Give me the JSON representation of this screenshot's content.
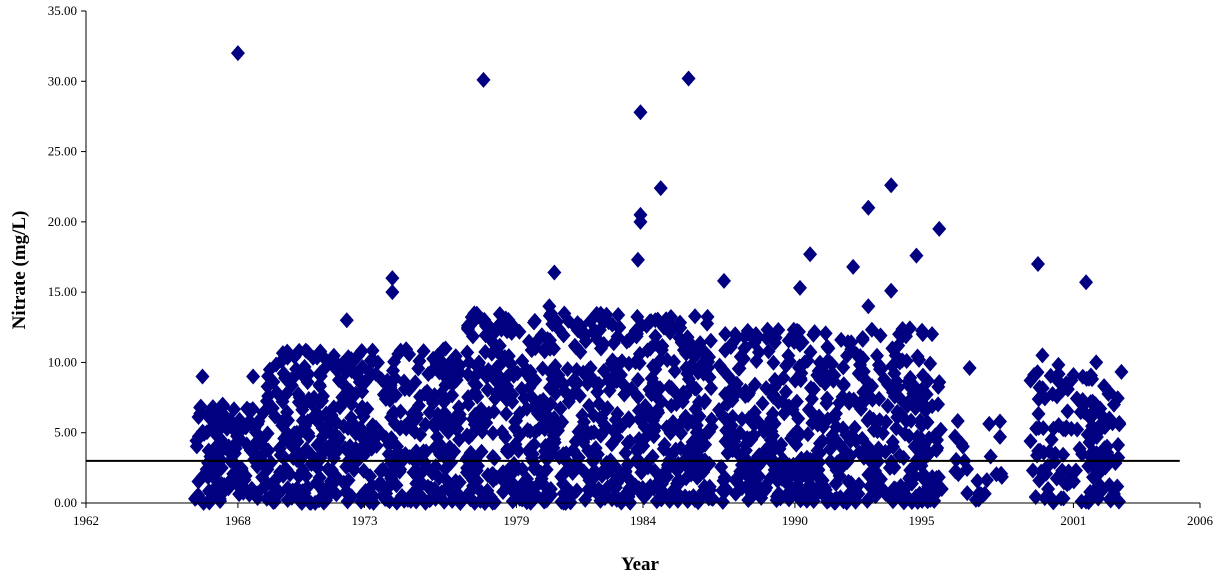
{
  "chart_data": {
    "type": "scatter",
    "title": "",
    "xlabel": "Year",
    "ylabel": "Nitrate (mg/L)",
    "xlim": [
      1962,
      2006
    ],
    "ylim": [
      0,
      35
    ],
    "x_ticks": [
      "1962",
      "1968",
      "1973",
      "1979",
      "1984",
      "1990",
      "1995",
      "2001",
      "2006"
    ],
    "y_ticks": [
      "0.00",
      "5.00",
      "10.00",
      "15.00",
      "20.00",
      "25.00",
      "30.00",
      "35.00"
    ],
    "grid": false,
    "legend": "none",
    "marker": "diamond",
    "marker_color": "#000080",
    "reference_line": {
      "y": 3.0,
      "x_range": [
        1962,
        2005.2
      ],
      "color": "#000000"
    },
    "highlighted_points": [
      {
        "x": 1968.0,
        "y": 32.0
      },
      {
        "x": 1977.7,
        "y": 30.1
      },
      {
        "x": 1985.8,
        "y": 30.2
      },
      {
        "x": 1983.9,
        "y": 27.8
      },
      {
        "x": 1984.7,
        "y": 22.4
      },
      {
        "x": 1993.8,
        "y": 22.6
      },
      {
        "x": 1992.9,
        "y": 21.0
      },
      {
        "x": 1983.9,
        "y": 20.5
      },
      {
        "x": 1983.9,
        "y": 20.0
      },
      {
        "x": 1995.7,
        "y": 19.5
      },
      {
        "x": 1990.6,
        "y": 17.7
      },
      {
        "x": 1994.8,
        "y": 17.6
      },
      {
        "x": 1983.8,
        "y": 17.3
      },
      {
        "x": 1999.6,
        "y": 17.0
      },
      {
        "x": 1992.3,
        "y": 16.8
      },
      {
        "x": 1980.5,
        "y": 16.4
      },
      {
        "x": 1974.1,
        "y": 16.0
      },
      {
        "x": 1987.2,
        "y": 15.8
      },
      {
        "x": 2001.5,
        "y": 15.7
      },
      {
        "x": 1990.2,
        "y": 15.3
      },
      {
        "x": 1993.8,
        "y": 15.1
      },
      {
        "x": 1974.1,
        "y": 15.0
      },
      {
        "x": 1992.9,
        "y": 14.0
      },
      {
        "x": 1980.3,
        "y": 14.0
      },
      {
        "x": 1972.3,
        "y": 13.0
      },
      {
        "x": 1966.6,
        "y": 9.0
      },
      {
        "x": 1968.6,
        "y": 9.0
      },
      {
        "x": 1967.4,
        "y": 7.0
      },
      {
        "x": 1996.9,
        "y": 9.6
      },
      {
        "x": 1998.1,
        "y": 5.8
      },
      {
        "x": 1998.1,
        "y": 4.7
      },
      {
        "x": 1996.7,
        "y": 3.0
      },
      {
        "x": 1995.8,
        "y": 1.0
      },
      {
        "x": 2000.0,
        "y": 1.0
      },
      {
        "x": 2001.5,
        "y": 0.1
      },
      {
        "x": 2002.8,
        "y": 0.1
      },
      {
        "x": 2002.6,
        "y": 7.0
      },
      {
        "x": 2001.9,
        "y": 10.0
      }
    ],
    "clusters": [
      {
        "x_range": [
          1966.3,
          1969.0
        ],
        "y_max": 7.0,
        "density": 50
      },
      {
        "x_range": [
          1969.0,
          1976.8
        ],
        "y_max": 11.0,
        "density": 60
      },
      {
        "x_range": [
          1977.0,
          1986.8
        ],
        "y_max": 13.5,
        "density": 70
      },
      {
        "x_range": [
          1987.0,
          1995.8
        ],
        "y_max": 12.5,
        "density": 60
      },
      {
        "x_range": [
          1996.0,
          1998.2
        ],
        "y_max": 6.0,
        "density": 10
      },
      {
        "x_range": [
          1999.3,
          2000.9
        ],
        "y_max": 10.5,
        "density": 35
      },
      {
        "x_range": [
          2000.9,
          2002.9
        ],
        "y_max": 9.5,
        "density": 40
      }
    ]
  }
}
